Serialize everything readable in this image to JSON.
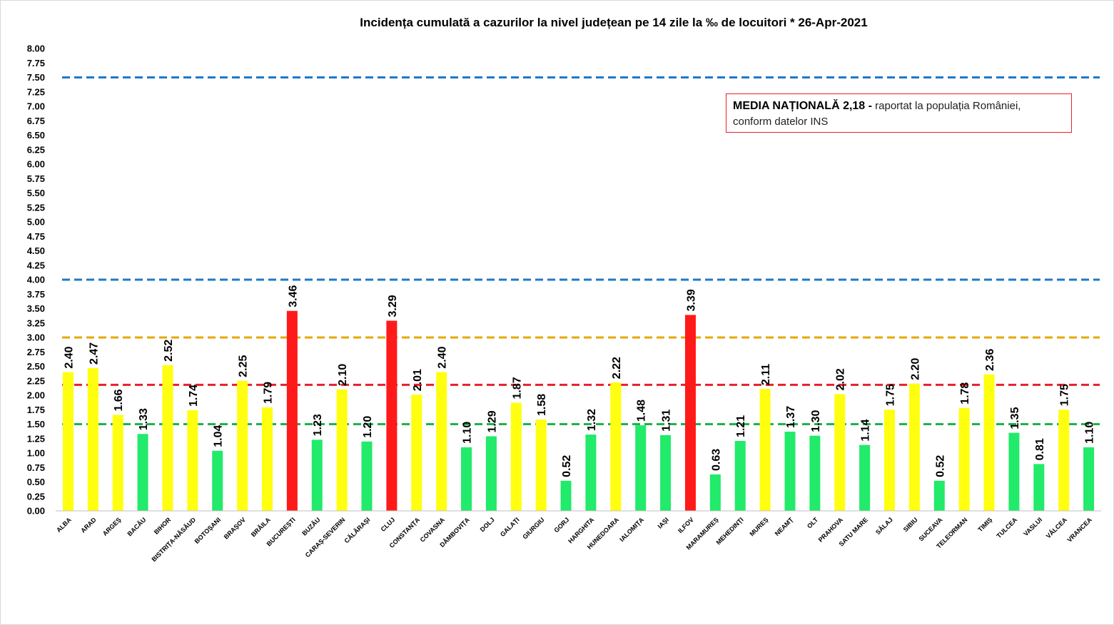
{
  "chart_data": {
    "type": "bar",
    "title": "Incidența cumulată a cazurilor la nivel județean pe 14 zile la ‰ de locuitori *   26-Apr-2021",
    "xlabel": "",
    "ylabel": "",
    "ylim": [
      0,
      8
    ],
    "ytick_step": 0.25,
    "grid": false,
    "categories": [
      "ALBA",
      "ARAD",
      "ARGEŞ",
      "BACĂU",
      "BIHOR",
      "BISTRIȚA-NĂSĂUD",
      "BOTOȘANI",
      "BRAȘOV",
      "BRĂILA",
      "BUCUREȘTI",
      "BUZĂU",
      "CARAȘ-SEVERIN",
      "CĂLĂRAȘI",
      "CLUJ",
      "CONSTANȚA",
      "COVASNA",
      "DÂMBOVIȚA",
      "DOLJ",
      "GALAȚI",
      "GIURGIU",
      "GORJ",
      "HARGHITA",
      "HUNEDOARA",
      "IALOMIȚA",
      "IAȘI",
      "ILFOV",
      "MARAMUREȘ",
      "MEHEDINȚI",
      "MUREȘ",
      "NEAMȚ",
      "OLT",
      "PRAHOVA",
      "SATU MARE",
      "SĂLAJ",
      "SIBIU",
      "SUCEAVA",
      "TELEORMAN",
      "TIMIȘ",
      "TULCEA",
      "VASLUI",
      "VÂLCEA",
      "VRANCEA"
    ],
    "values": [
      2.4,
      2.47,
      1.66,
      1.33,
      2.52,
      1.74,
      1.04,
      2.25,
      1.79,
      3.46,
      1.23,
      2.1,
      1.2,
      3.29,
      2.01,
      2.4,
      1.1,
      1.29,
      1.87,
      1.58,
      0.52,
      1.32,
      2.22,
      1.48,
      1.31,
      3.39,
      0.63,
      1.21,
      2.11,
      1.37,
      1.3,
      2.02,
      1.14,
      1.75,
      2.2,
      0.52,
      1.78,
      2.36,
      1.35,
      0.81,
      1.75,
      1.1
    ],
    "data_labels": [
      "2.40",
      "2.47",
      "1.66",
      "1.33",
      "2.52",
      "1.74",
      "1.04",
      "2.25",
      "1.79",
      "3.46",
      "1.23",
      "2.10",
      "1.20",
      "3.29",
      "2.01",
      "2.40",
      "1.10",
      "1.29",
      "1.87",
      "1.58",
      "0.52",
      "1.32",
      "2.22",
      "1.48",
      "1.31",
      "3.39",
      "0.63",
      "1.21",
      "2.11",
      "1.37",
      "1.30",
      "2.02",
      "1.14",
      "1.75",
      "2.20",
      "0.52",
      "1.78",
      "2.36",
      "1.35",
      "0.81",
      "1.75",
      "1.10"
    ],
    "colors": {
      "green": "#22ea6a",
      "yellow": "#ffff0f",
      "red": "#ff1a1a"
    },
    "color_thresholds": {
      "yellow_from": 1.5,
      "red_from": 3.0
    },
    "reference_lines": [
      {
        "value": 7.5,
        "color": "#1f78c8"
      },
      {
        "value": 4.0,
        "color": "#1f78c8"
      },
      {
        "value": 3.0,
        "color": "#e6a700"
      },
      {
        "value": 2.18,
        "color": "#e8202a"
      },
      {
        "value": 1.5,
        "color": "#1cb34a"
      }
    ]
  },
  "note": {
    "bold_text": "MEDIA NAȚIONALĂ  2,18 -",
    "text_line1": " raportat la populația României,",
    "text_line2": "conform datelor INS"
  }
}
